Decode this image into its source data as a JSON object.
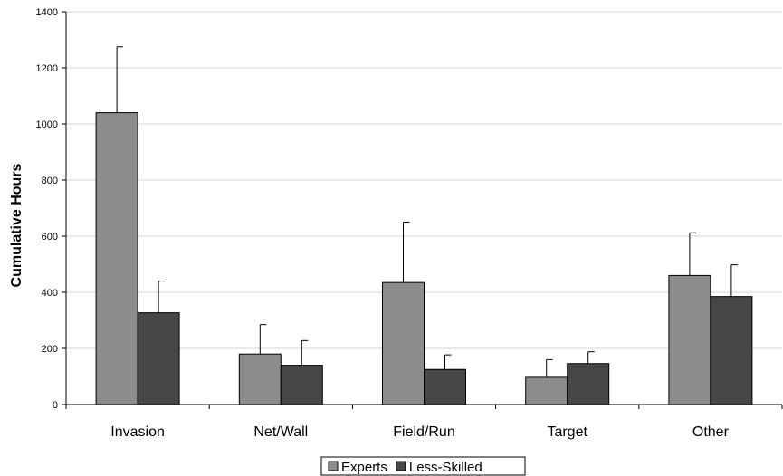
{
  "chart_data": {
    "type": "bar",
    "title": "",
    "xlabel": "",
    "ylabel": "Cumulative Hours",
    "ylim": [
      0,
      1400
    ],
    "yticks": [
      0,
      200,
      400,
      600,
      800,
      1000,
      1200,
      1400
    ],
    "grid": true,
    "legend_placement": "bottom-center",
    "categories": [
      "Invasion",
      "Net/Wall",
      "Field/Run",
      "Target",
      "Other"
    ],
    "series": [
      {
        "name": "Experts",
        "color": "#8c8c8c",
        "values": [
          1040,
          180,
          435,
          97,
          460
        ],
        "error_upper": [
          1275,
          285,
          650,
          160,
          612
        ]
      },
      {
        "name": "Less-Skilled",
        "color": "#474747",
        "values": [
          327,
          140,
          125,
          146,
          385
        ],
        "error_upper": [
          440,
          228,
          177,
          188,
          498
        ]
      }
    ]
  }
}
